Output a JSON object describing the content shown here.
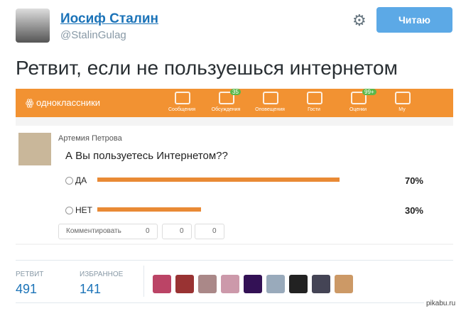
{
  "tweet": {
    "author": {
      "name": "Иосиф Сталин",
      "handle": "@StalinGulag"
    },
    "follow_button": "Читаю",
    "text": "Ретвит, если не пользуешься интернетом",
    "embedded": {
      "site": "одноклассники",
      "nav": [
        {
          "label": "Сообщения"
        },
        {
          "label": "Обсуждения",
          "badge": "35"
        },
        {
          "label": "Оповещения"
        },
        {
          "label": "Гости"
        },
        {
          "label": "Оценки",
          "badge": "99+"
        },
        {
          "label": "Му"
        }
      ],
      "post": {
        "author": "Артемия Петрова",
        "question": "А Вы пользуетесь Интернетом??",
        "poll": {
          "options": [
            "ДА",
            "НЕТ"
          ],
          "values": [
            70,
            30
          ],
          "value_labels": [
            "70%",
            "30%"
          ]
        },
        "actions": [
          {
            "label": "Комментировать",
            "count": "0"
          },
          {
            "count": "0"
          },
          {
            "count": "0"
          }
        ]
      }
    },
    "stats": [
      {
        "label": "РЕТВИТ",
        "value": "491"
      },
      {
        "label": "ИЗБРАННОЕ",
        "value": "141"
      }
    ]
  },
  "watermark": "pikabu.ru"
}
